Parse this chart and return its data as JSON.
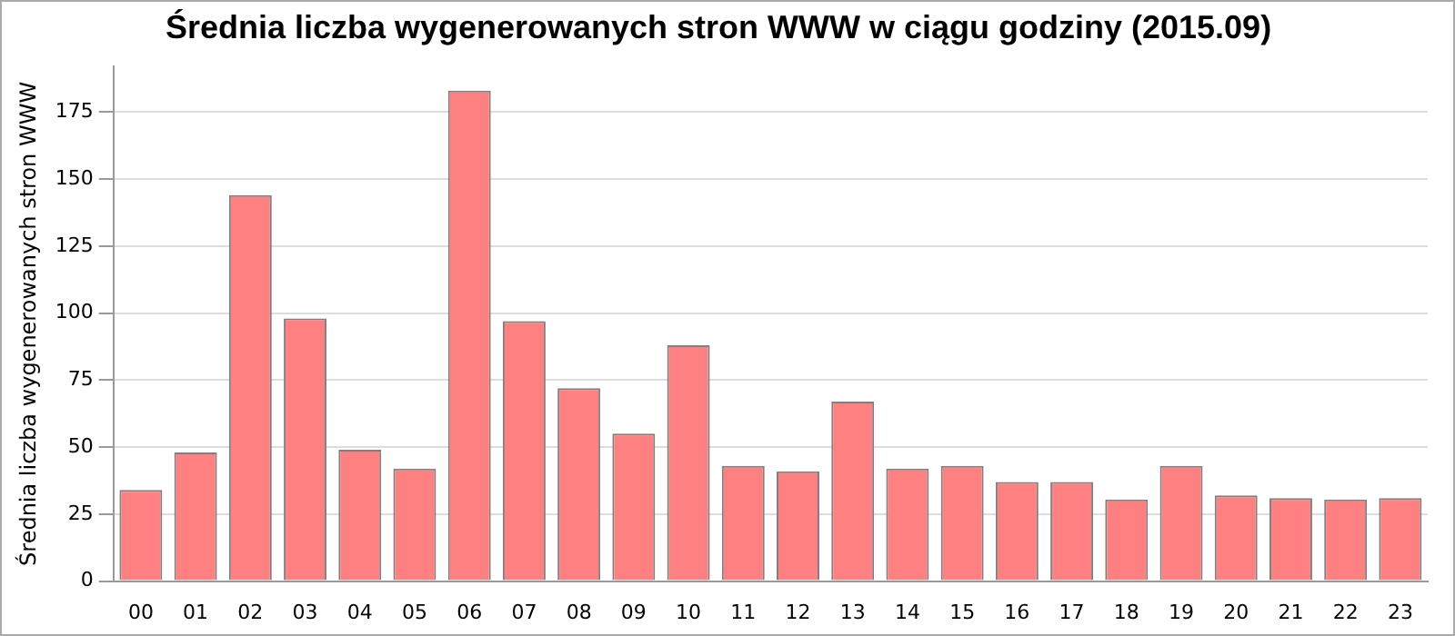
{
  "chart_data": {
    "type": "bar",
    "title": "Średnia liczba wygenerowanych stron WWW w ciągu godziny (2015.09)",
    "ylabel": "Średnia liczba wygenerowanych stron WWW",
    "categories": [
      "00",
      "01",
      "02",
      "03",
      "04",
      "05",
      "06",
      "07",
      "08",
      "09",
      "10",
      "11",
      "12",
      "13",
      "14",
      "15",
      "16",
      "17",
      "18",
      "19",
      "20",
      "21",
      "22",
      "23"
    ],
    "values": [
      34,
      48,
      144,
      98,
      49,
      42,
      183,
      97,
      72,
      55,
      88,
      43,
      41,
      67,
      42,
      43,
      37,
      37,
      30.5,
      43,
      32,
      31,
      30.5,
      31
    ],
    "color": "#ff8080",
    "ylim": [
      0,
      192
    ],
    "yticks": [
      0,
      25,
      50,
      75,
      100,
      125,
      150,
      175
    ],
    "grid": "y",
    "legend": false
  }
}
